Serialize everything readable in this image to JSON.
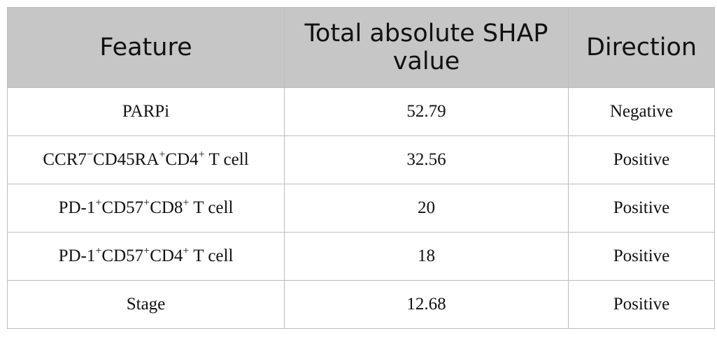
{
  "table": {
    "headers": {
      "feature": "Feature",
      "value": "Total absolute SHAP value",
      "direction": "Direction"
    },
    "rows": [
      {
        "feature": [
          {
            "t": "PARPi"
          }
        ],
        "value": "52.79",
        "direction": "Negative"
      },
      {
        "feature": [
          {
            "t": "CCR7"
          },
          {
            "s": "−"
          },
          {
            "t": "CD45RA"
          },
          {
            "s": "+"
          },
          {
            "t": "CD4"
          },
          {
            "s": "+"
          },
          {
            "t": " T cell"
          }
        ],
        "value": "32.56",
        "direction": "Positive"
      },
      {
        "feature": [
          {
            "t": "PD-1"
          },
          {
            "s": "+"
          },
          {
            "t": "CD57"
          },
          {
            "s": "+"
          },
          {
            "t": "CD8"
          },
          {
            "s": "+"
          },
          {
            "t": " T cell"
          }
        ],
        "value": "20",
        "direction": "Positive"
      },
      {
        "feature": [
          {
            "t": "PD-1"
          },
          {
            "s": "+"
          },
          {
            "t": "CD57"
          },
          {
            "s": "+"
          },
          {
            "t": "CD4"
          },
          {
            "s": "+"
          },
          {
            "t": " T cell"
          }
        ],
        "value": "18",
        "direction": "Positive"
      },
      {
        "feature": [
          {
            "t": "Stage"
          }
        ],
        "value": "12.68",
        "direction": "Positive"
      }
    ]
  }
}
